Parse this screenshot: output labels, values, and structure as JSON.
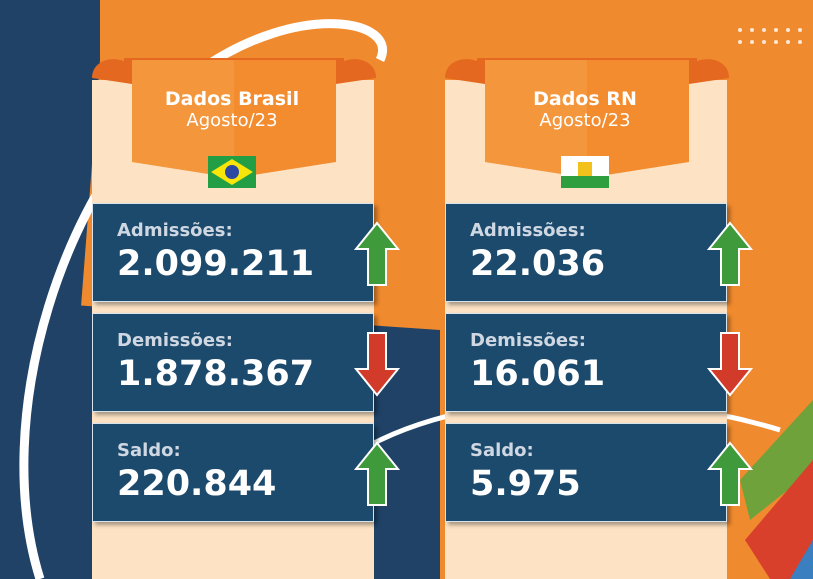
{
  "panels": [
    {
      "title": "Dados Brasil",
      "subtitle": "Agosto/23",
      "rows": [
        {
          "label": "Admissões:",
          "value": "2.099.211",
          "trend": "up"
        },
        {
          "label": "Demissões:",
          "value": "1.878.367",
          "trend": "down"
        },
        {
          "label": "Saldo:",
          "value": "220.844",
          "trend": "up"
        }
      ]
    },
    {
      "title": "Dados RN",
      "subtitle": "Agosto/23",
      "rows": [
        {
          "label": "Admissões:",
          "value": "22.036",
          "trend": "up"
        },
        {
          "label": "Demissões:",
          "value": "16.061",
          "trend": "down"
        },
        {
          "label": "Saldo:",
          "value": "5.975",
          "trend": "up"
        }
      ]
    }
  ]
}
